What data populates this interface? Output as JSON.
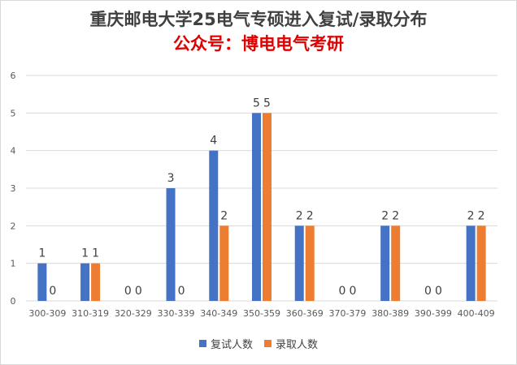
{
  "chart_data": {
    "type": "bar",
    "title": "重庆邮电大学25电气专硕进入复试/录取分布",
    "subtitle": "公众号：博电电气考研",
    "categories": [
      "300-309",
      "310-319",
      "320-329",
      "330-339",
      "340-349",
      "350-359",
      "360-369",
      "370-379",
      "380-389",
      "390-399",
      "400-409"
    ],
    "series": [
      {
        "name": "复试人数",
        "color": "#4472c4",
        "values": [
          1,
          1,
          0,
          3,
          4,
          5,
          2,
          0,
          2,
          0,
          2
        ]
      },
      {
        "name": "录取人数",
        "color": "#ed7d31",
        "values": [
          0,
          1,
          0,
          0,
          2,
          5,
          2,
          0,
          2,
          0,
          2
        ]
      }
    ],
    "ylim": [
      0,
      6
    ],
    "yticks": [
      0,
      1,
      2,
      3,
      4,
      5,
      6
    ],
    "grid": true,
    "legend": "bottom"
  }
}
